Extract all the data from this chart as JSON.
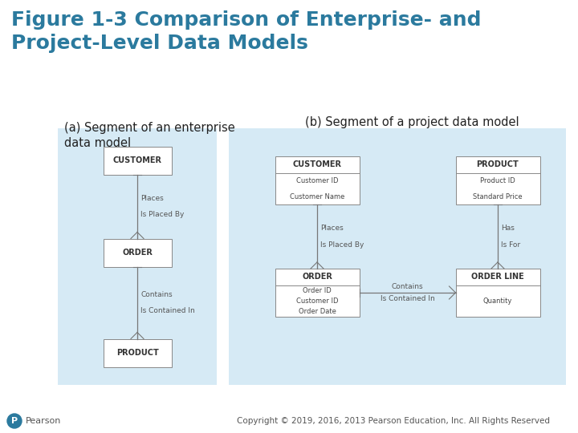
{
  "title_line1": "Figure 1-3 Comparison of Enterprise- and",
  "title_line2": "Project-Level Data Models",
  "title_color": "#2B7A9E",
  "title_fontsize": 18,
  "bg_color": "#FFFFFF",
  "panel_bg": "#D6EAF5",
  "label_a": "(a) Segment of an enterprise\ndata model",
  "label_b": "(b) Segment of a project data model",
  "label_fontsize": 10.5,
  "label_color": "#222222",
  "copyright_text": "Copyright © 2019, 2016, 2013 Pearson Education, Inc. All Rights Reserved",
  "copyright_fontsize": 7.5,
  "pearson_color": "#2B7A9E",
  "box_color": "#FFFFFF",
  "box_edge": "#888888",
  "line_color": "#777777",
  "rel_fontsize": 6.5,
  "entity_fontsize_a": 7,
  "entity_fontsize_b": 7
}
